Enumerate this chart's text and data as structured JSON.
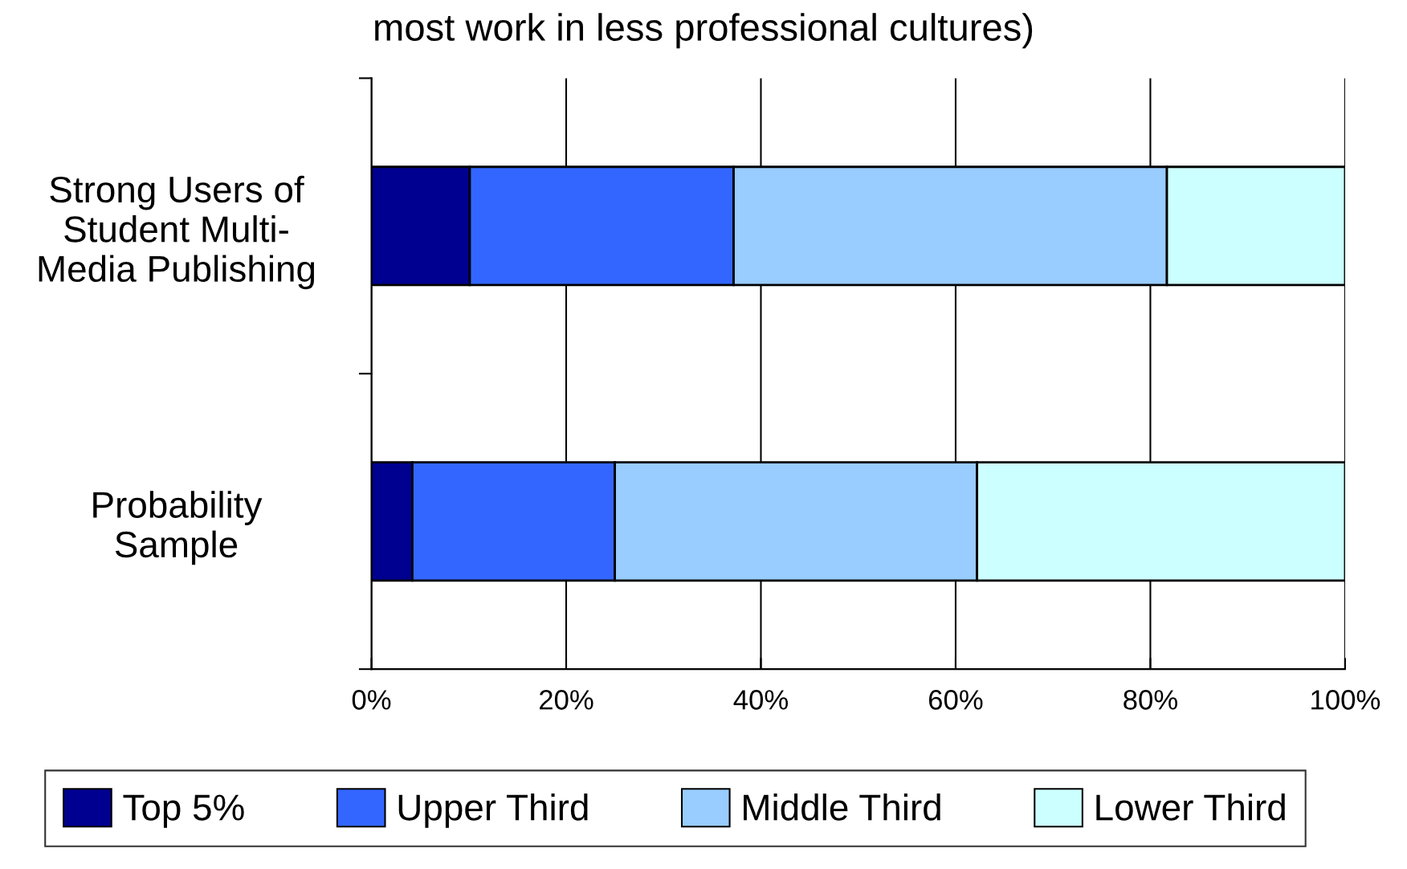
{
  "chart_data": {
    "type": "bar",
    "orientation": "horizontal",
    "stacked": true,
    "title": "most work in less professional cultures)",
    "categories": [
      "Strong Users of\nStudent Multi-\nMedia Publishing",
      "Probability\nSample"
    ],
    "series": [
      {
        "name": "Top 5%",
        "color": "#000090",
        "values": [
          10.1,
          4.2
        ]
      },
      {
        "name": "Upper Third",
        "color": "#3366ff",
        "values": [
          27.1,
          20.8
        ]
      },
      {
        "name": "Middle Third",
        "color": "#99ccff",
        "values": [
          44.5,
          37.2
        ]
      },
      {
        "name": "Lower Third",
        "color": "#ccffff",
        "values": [
          18.3,
          37.8
        ]
      }
    ],
    "xlim": [
      0,
      100
    ],
    "xticks": [
      {
        "value": 0,
        "label": "0%"
      },
      {
        "value": 20,
        "label": "20%"
      },
      {
        "value": 40,
        "label": "40%"
      },
      {
        "value": 60,
        "label": "60%"
      },
      {
        "value": 80,
        "label": "80%"
      },
      {
        "value": 100,
        "label": "100%"
      }
    ],
    "grid": "x",
    "legend": "bottom"
  }
}
